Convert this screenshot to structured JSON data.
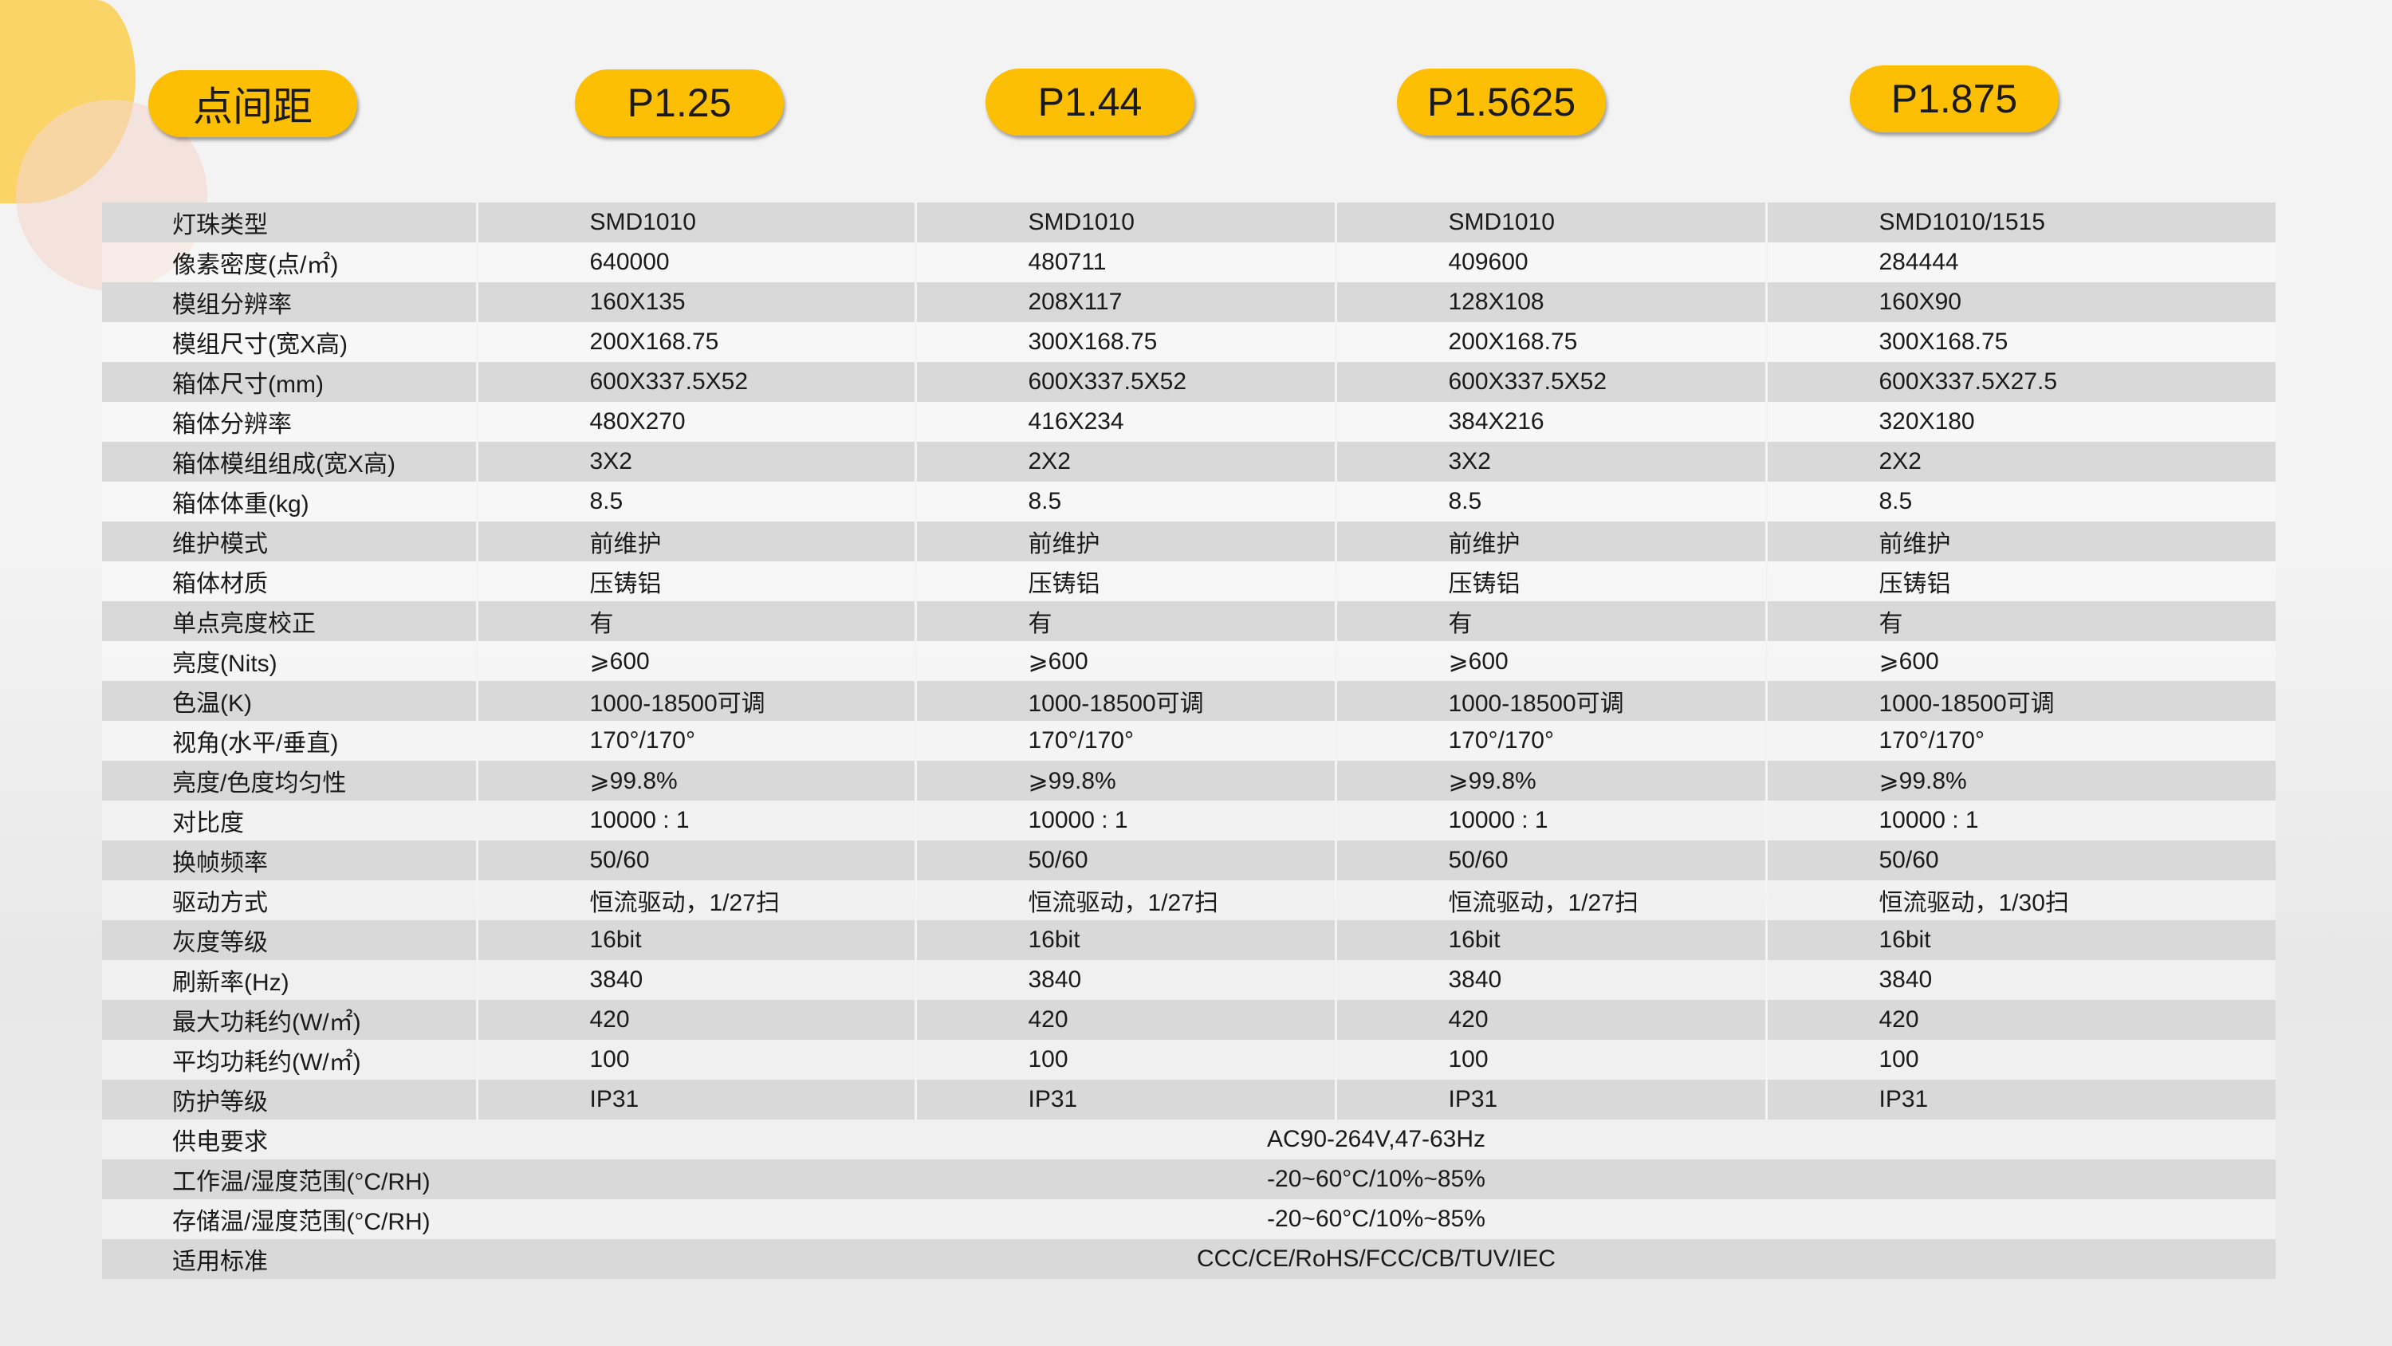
{
  "header": {
    "label": "点间距",
    "models": [
      "P1.25",
      "P1.44",
      "P1.5625",
      "P1.875"
    ]
  },
  "rows": [
    {
      "label": "灯珠类型",
      "values": [
        "SMD1010",
        "SMD1010",
        "SMD1010",
        "SMD1010/1515"
      ]
    },
    {
      "label": "像素密度(点/㎡)",
      "values": [
        "640000",
        "480711",
        "409600",
        "284444"
      ]
    },
    {
      "label": "模组分辨率",
      "values": [
        "160X135",
        "208X117",
        "128X108",
        "160X90"
      ]
    },
    {
      "label": "模组尺寸(宽X高)",
      "values": [
        "200X168.75",
        "300X168.75",
        "200X168.75",
        "300X168.75"
      ]
    },
    {
      "label": "箱体尺寸(mm)",
      "values": [
        "600X337.5X52",
        "600X337.5X52",
        "600X337.5X52",
        "600X337.5X27.5"
      ]
    },
    {
      "label": "箱体分辨率",
      "values": [
        "480X270",
        "416X234",
        "384X216",
        "320X180"
      ]
    },
    {
      "label": "箱体模组组成(宽X高)",
      "values": [
        "3X2",
        "2X2",
        "3X2",
        "2X2"
      ]
    },
    {
      "label": "箱体体重(kg)",
      "values": [
        "8.5",
        "8.5",
        "8.5",
        "8.5"
      ]
    },
    {
      "label": "维护模式",
      "values": [
        "前维护",
        "前维护",
        "前维护",
        "前维护"
      ]
    },
    {
      "label": "箱体材质",
      "values": [
        "压铸铝",
        "压铸铝",
        "压铸铝",
        "压铸铝"
      ]
    },
    {
      "label": "单点亮度校正",
      "values": [
        "有",
        "有",
        "有",
        "有"
      ]
    },
    {
      "label": "亮度(Nits)",
      "values": [
        "⩾600",
        "⩾600",
        "⩾600",
        "⩾600"
      ]
    },
    {
      "label": "色温(K)",
      "values": [
        "1000-18500可调",
        "1000-18500可调",
        "1000-18500可调",
        "1000-18500可调"
      ]
    },
    {
      "label": "视角(水平/垂直)",
      "values": [
        "170°/170°",
        "170°/170°",
        "170°/170°",
        "170°/170°"
      ]
    },
    {
      "label": "亮度/色度均匀性",
      "values": [
        "⩾99.8%",
        "⩾99.8%",
        "⩾99.8%",
        "⩾99.8%"
      ]
    },
    {
      "label": "对比度",
      "values": [
        "10000 : 1",
        "10000 : 1",
        "10000 : 1",
        "10000 : 1"
      ]
    },
    {
      "label": "换帧频率",
      "values": [
        "50/60",
        "50/60",
        "50/60",
        "50/60"
      ]
    },
    {
      "label": "驱动方式",
      "values": [
        "恒流驱动，1/27扫",
        "恒流驱动，1/27扫",
        "恒流驱动，1/27扫",
        "恒流驱动，1/30扫"
      ]
    },
    {
      "label": "灰度等级",
      "values": [
        "16bit",
        "16bit",
        "16bit",
        "16bit"
      ]
    },
    {
      "label": "刷新率(Hz)",
      "values": [
        "3840",
        "3840",
        "3840",
        "3840"
      ]
    },
    {
      "label": "最大功耗约(W/㎡)",
      "values": [
        "420",
        "420",
        "420",
        "420"
      ]
    },
    {
      "label": "平均功耗约(W/㎡)",
      "values": [
        "100",
        "100",
        "100",
        "100"
      ]
    },
    {
      "label": "防护等级",
      "values": [
        "IP31",
        "IP31",
        "IP31",
        "IP31"
      ]
    }
  ],
  "shared_rows": [
    {
      "label": "供电要求",
      "value": "AC90-264V,47-63Hz"
    },
    {
      "label": "工作温/湿度范围(°C/RH)",
      "value": "-20~60°C/10%~85%"
    },
    {
      "label": "存储温/湿度范围(°C/RH)",
      "value": "-20~60°C/10%~85%"
    },
    {
      "label": "适用标准",
      "value": "CCC/CE/RoHS/FCC/CB/TUV/IEC"
    }
  ],
  "colors": {
    "accent": "#fdbf03",
    "row_gray": "#d9d9d9",
    "circle": "#fad466"
  }
}
